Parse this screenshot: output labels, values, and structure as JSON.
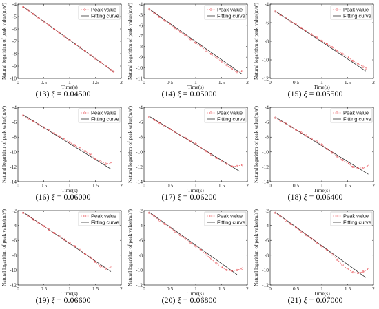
{
  "colors": {
    "peak": "#e8474c",
    "fit": "#333333",
    "axis": "#000000"
  },
  "shared": {
    "xlabel": "Time(s)",
    "ylabel": "Natural logarithm of peak value(m/s²)",
    "legend": [
      "Peak value",
      "Fitting curve"
    ],
    "xi_symbol": "ξ",
    "equals": "="
  },
  "chart_data": [
    {
      "type": "line",
      "caption_id": "(13)",
      "caption_value": "0.04500",
      "xlabel": "Time(s)",
      "ylabel": "Natural logarithm of peak value(m/s²)",
      "xlim": [
        0,
        2
      ],
      "ylim": [
        -10,
        -4
      ],
      "xticks": [
        "0",
        "0.5",
        "1",
        "1.5",
        "2"
      ],
      "yticks": [
        "-10",
        "-9",
        "-8",
        "-7",
        "-6",
        "-5",
        "-4"
      ],
      "legend": "top-right",
      "grid": false,
      "series": [
        {
          "name": "Peak value",
          "x": [
            0.1,
            0.2,
            0.3,
            0.4,
            0.5,
            0.6,
            0.7,
            0.8,
            0.9,
            1.0,
            1.1,
            1.2,
            1.3,
            1.4,
            1.5,
            1.6,
            1.7,
            1.8,
            1.85
          ],
          "y": [
            -4.2,
            -4.5,
            -4.8,
            -5.1,
            -5.4,
            -5.7,
            -6.0,
            -6.3,
            -6.6,
            -6.9,
            -7.2,
            -7.5,
            -7.8,
            -8.1,
            -8.4,
            -8.7,
            -9.0,
            -9.3,
            -9.45
          ]
        },
        {
          "name": "Fitting curve",
          "x": [
            0.1,
            1.85
          ],
          "y": [
            -4.2,
            -9.45
          ]
        }
      ]
    },
    {
      "type": "line",
      "caption_id": "(14)",
      "caption_value": "0.05000",
      "xlabel": "Time(s)",
      "ylabel": "Natural logarithm of peak value(m/s²)",
      "xlim": [
        0,
        2
      ],
      "ylim": [
        -11,
        -4
      ],
      "xticks": [
        "0",
        "0.5",
        "1",
        "1.5",
        "2"
      ],
      "yticks": [
        "-11",
        "-10",
        "-9",
        "-8",
        "-7",
        "-6",
        "-5",
        "-4"
      ],
      "legend": "top-right",
      "grid": false,
      "series": [
        {
          "name": "Peak value",
          "x": [
            0.1,
            0.2,
            0.3,
            0.4,
            0.5,
            0.6,
            0.7,
            0.8,
            0.9,
            1.0,
            1.1,
            1.2,
            1.3,
            1.4,
            1.5,
            1.6,
            1.7,
            1.8,
            1.9
          ],
          "y": [
            -4.5,
            -4.85,
            -5.2,
            -5.55,
            -5.9,
            -6.25,
            -6.6,
            -6.95,
            -7.3,
            -7.65,
            -8.0,
            -8.35,
            -8.7,
            -9.05,
            -9.4,
            -9.75,
            -10.1,
            -10.4,
            -10.3
          ]
        },
        {
          "name": "Fitting curve",
          "x": [
            0.1,
            1.9
          ],
          "y": [
            -4.45,
            -10.6
          ]
        }
      ]
    },
    {
      "type": "line",
      "caption_id": "(15)",
      "caption_value": "0.05500",
      "xlabel": "Time(s)",
      "ylabel": "Natural logarithm of peak value(m/s²)",
      "xlim": [
        0,
        2
      ],
      "ylim": [
        -12,
        -4
      ],
      "xticks": [
        "0",
        "0.5",
        "1",
        "1.5",
        "2"
      ],
      "yticks": [
        "-12",
        "-10",
        "-8",
        "-6",
        "-4"
      ],
      "legend": "top-right",
      "grid": false,
      "series": [
        {
          "name": "Peak value",
          "x": [
            0.1,
            0.2,
            0.3,
            0.4,
            0.5,
            0.6,
            0.7,
            0.8,
            0.9,
            1.0,
            1.1,
            1.2,
            1.3,
            1.4,
            1.5,
            1.6,
            1.7,
            1.8,
            1.85
          ],
          "y": [
            -4.8,
            -5.15,
            -5.5,
            -5.85,
            -6.2,
            -6.55,
            -6.9,
            -7.25,
            -7.6,
            -7.95,
            -8.3,
            -8.65,
            -9.0,
            -9.35,
            -9.7,
            -10.1,
            -10.4,
            -10.75,
            -10.9
          ]
        },
        {
          "name": "Fitting curve",
          "x": [
            0.1,
            1.85
          ],
          "y": [
            -4.75,
            -11.2
          ]
        }
      ]
    },
    {
      "type": "line",
      "caption_id": "(16)",
      "caption_value": "0.06000",
      "xlabel": "Time(s)",
      "ylabel": "Natural logarithm of peak value(m/s²)",
      "xlim": [
        0,
        2
      ],
      "ylim": [
        -14,
        -4
      ],
      "xticks": [
        "0",
        "0.5",
        "1",
        "1.5",
        "2"
      ],
      "yticks": [
        "-14",
        "-12",
        "-10",
        "-8",
        "-6",
        "-4"
      ],
      "legend": "top-right",
      "grid": false,
      "series": [
        {
          "name": "Peak value",
          "x": [
            0.1,
            0.2,
            0.3,
            0.4,
            0.5,
            0.6,
            0.7,
            0.8,
            0.9,
            1.0,
            1.1,
            1.2,
            1.3,
            1.4,
            1.5,
            1.6,
            1.7,
            1.8
          ],
          "y": [
            -5.1,
            -5.5,
            -5.9,
            -6.3,
            -6.7,
            -7.1,
            -7.5,
            -7.9,
            -8.3,
            -8.7,
            -9.1,
            -9.5,
            -9.9,
            -10.3,
            -10.9,
            -11.3,
            -11.6,
            -11.55
          ]
        },
        {
          "name": "Fitting curve",
          "x": [
            0.1,
            1.8
          ],
          "y": [
            -5.0,
            -12.3
          ]
        }
      ]
    },
    {
      "type": "line",
      "caption_id": "(17)",
      "caption_value": "0.06200",
      "xlabel": "Time(s)",
      "ylabel": "Natural logarithm of peak value(m/s²)",
      "xlim": [
        0,
        2
      ],
      "ylim": [
        -14,
        -4
      ],
      "xticks": [
        "0",
        "0.5",
        "1",
        "1.5",
        "2"
      ],
      "yticks": [
        "-14",
        "-12",
        "-10",
        "-8",
        "-6",
        "-4"
      ],
      "legend": "top-right",
      "grid": false,
      "series": [
        {
          "name": "Peak value",
          "x": [
            0.1,
            0.2,
            0.3,
            0.4,
            0.5,
            0.6,
            0.7,
            0.8,
            0.9,
            1.0,
            1.1,
            1.2,
            1.3,
            1.4,
            1.5,
            1.6,
            1.7,
            1.8,
            1.9
          ],
          "y": [
            -5.3,
            -5.7,
            -6.1,
            -6.5,
            -6.9,
            -7.3,
            -7.7,
            -8.1,
            -8.5,
            -8.9,
            -9.4,
            -9.9,
            -10.35,
            -10.8,
            -11.25,
            -11.6,
            -11.95,
            -11.9,
            -11.75
          ]
        },
        {
          "name": "Fitting curve",
          "x": [
            0.1,
            1.85
          ],
          "y": [
            -5.2,
            -12.6
          ]
        }
      ]
    },
    {
      "type": "line",
      "caption_id": "(18)",
      "caption_value": "0.06400",
      "xlabel": "Time(s)",
      "ylabel": "Natural logarithm of peak value(m/s²)",
      "xlim": [
        0,
        2
      ],
      "ylim": [
        -14,
        -4
      ],
      "xticks": [
        "0",
        "0.5",
        "1",
        "1.5",
        "2"
      ],
      "yticks": [
        "-14",
        "-12",
        "-10",
        "-8",
        "-6",
        "-4"
      ],
      "legend": "top-right",
      "grid": false,
      "series": [
        {
          "name": "Peak value",
          "x": [
            0.1,
            0.2,
            0.3,
            0.4,
            0.5,
            0.6,
            0.7,
            0.8,
            0.9,
            1.0,
            1.1,
            1.2,
            1.3,
            1.4,
            1.5,
            1.6,
            1.7,
            1.8,
            1.9
          ],
          "y": [
            -5.4,
            -5.8,
            -6.2,
            -6.6,
            -7.0,
            -7.4,
            -7.8,
            -8.2,
            -8.6,
            -9.0,
            -9.6,
            -10.1,
            -10.6,
            -11.1,
            -11.5,
            -12.0,
            -12.2,
            -12.1,
            -11.9
          ]
        },
        {
          "name": "Fitting curve",
          "x": [
            0.1,
            1.9
          ],
          "y": [
            -5.3,
            -13.0
          ]
        }
      ]
    },
    {
      "type": "line",
      "caption_id": "(19)",
      "caption_value": "0.06600",
      "xlabel": "Time(s)",
      "ylabel": "Natural logarithm of peak value(m/s²)",
      "xlim": [
        0,
        2
      ],
      "ylim": [
        -12,
        -2
      ],
      "xticks": [
        "0",
        "0.5",
        "1",
        "1.5",
        "2"
      ],
      "yticks": [
        "-12",
        "-10",
        "-8",
        "-6",
        "-4",
        "-2"
      ],
      "legend": "top-right",
      "grid": false,
      "series": [
        {
          "name": "Peak value",
          "x": [
            0.1,
            0.2,
            0.3,
            0.4,
            0.5,
            0.6,
            0.7,
            0.8,
            0.9,
            1.0,
            1.1,
            1.2,
            1.3,
            1.4,
            1.5,
            1.6,
            1.7,
            1.8
          ],
          "y": [
            -2.3,
            -2.75,
            -3.2,
            -3.65,
            -4.1,
            -4.55,
            -5.0,
            -5.45,
            -5.9,
            -6.35,
            -6.8,
            -7.3,
            -7.8,
            -8.3,
            -8.9,
            -9.5,
            -9.8,
            -9.6
          ]
        },
        {
          "name": "Fitting curve",
          "x": [
            0.1,
            1.8
          ],
          "y": [
            -2.2,
            -10.2
          ]
        }
      ]
    },
    {
      "type": "line",
      "caption_id": "(20)",
      "caption_value": "0.06800",
      "xlabel": "Time(s)",
      "ylabel": "Natural logarithm of peak value(m/s²)",
      "xlim": [
        0,
        2
      ],
      "ylim": [
        -12,
        -2
      ],
      "xticks": [
        "0",
        "0.5",
        "1",
        "1.5",
        "2"
      ],
      "yticks": [
        "-12",
        "-10",
        "-8",
        "-6",
        "-4",
        "-2"
      ],
      "legend": "top-right",
      "grid": false,
      "series": [
        {
          "name": "Peak value",
          "x": [
            0.1,
            0.2,
            0.3,
            0.4,
            0.5,
            0.6,
            0.7,
            0.8,
            0.9,
            1.0,
            1.1,
            1.2,
            1.3,
            1.4,
            1.5,
            1.6,
            1.7,
            1.8,
            1.9
          ],
          "y": [
            -2.3,
            -2.8,
            -3.3,
            -3.8,
            -4.3,
            -4.8,
            -5.3,
            -5.8,
            -6.3,
            -6.8,
            -7.3,
            -7.9,
            -8.5,
            -9.1,
            -9.6,
            -10.0,
            -10.1,
            -10.0,
            -9.8
          ]
        },
        {
          "name": "Fitting curve",
          "x": [
            0.1,
            1.8
          ],
          "y": [
            -2.2,
            -10.6
          ]
        }
      ]
    },
    {
      "type": "line",
      "caption_id": "(21)",
      "caption_value": "0.07000",
      "xlabel": "Time(s)",
      "ylabel": "Natural logarithm of peak value(m/s²)",
      "xlim": [
        0,
        2
      ],
      "ylim": [
        -12,
        -2
      ],
      "xticks": [
        "0",
        "0.5",
        "1",
        "1.5",
        "2"
      ],
      "yticks": [
        "-12",
        "-10",
        "-8",
        "-6",
        "-4",
        "-2"
      ],
      "legend": "top-right",
      "grid": false,
      "series": [
        {
          "name": "Peak value",
          "x": [
            0.1,
            0.2,
            0.3,
            0.4,
            0.5,
            0.6,
            0.7,
            0.8,
            0.9,
            1.0,
            1.1,
            1.2,
            1.3,
            1.4,
            1.5,
            1.6,
            1.7,
            1.8,
            1.9
          ],
          "y": [
            -2.3,
            -2.8,
            -3.3,
            -3.8,
            -4.3,
            -4.8,
            -5.3,
            -5.8,
            -6.3,
            -6.8,
            -7.3,
            -7.9,
            -8.6,
            -9.3,
            -9.9,
            -10.3,
            -10.4,
            -10.2,
            -9.9
          ]
        },
        {
          "name": "Fitting curve",
          "x": [
            0.1,
            1.85
          ],
          "y": [
            -2.2,
            -11.0
          ]
        }
      ]
    }
  ]
}
